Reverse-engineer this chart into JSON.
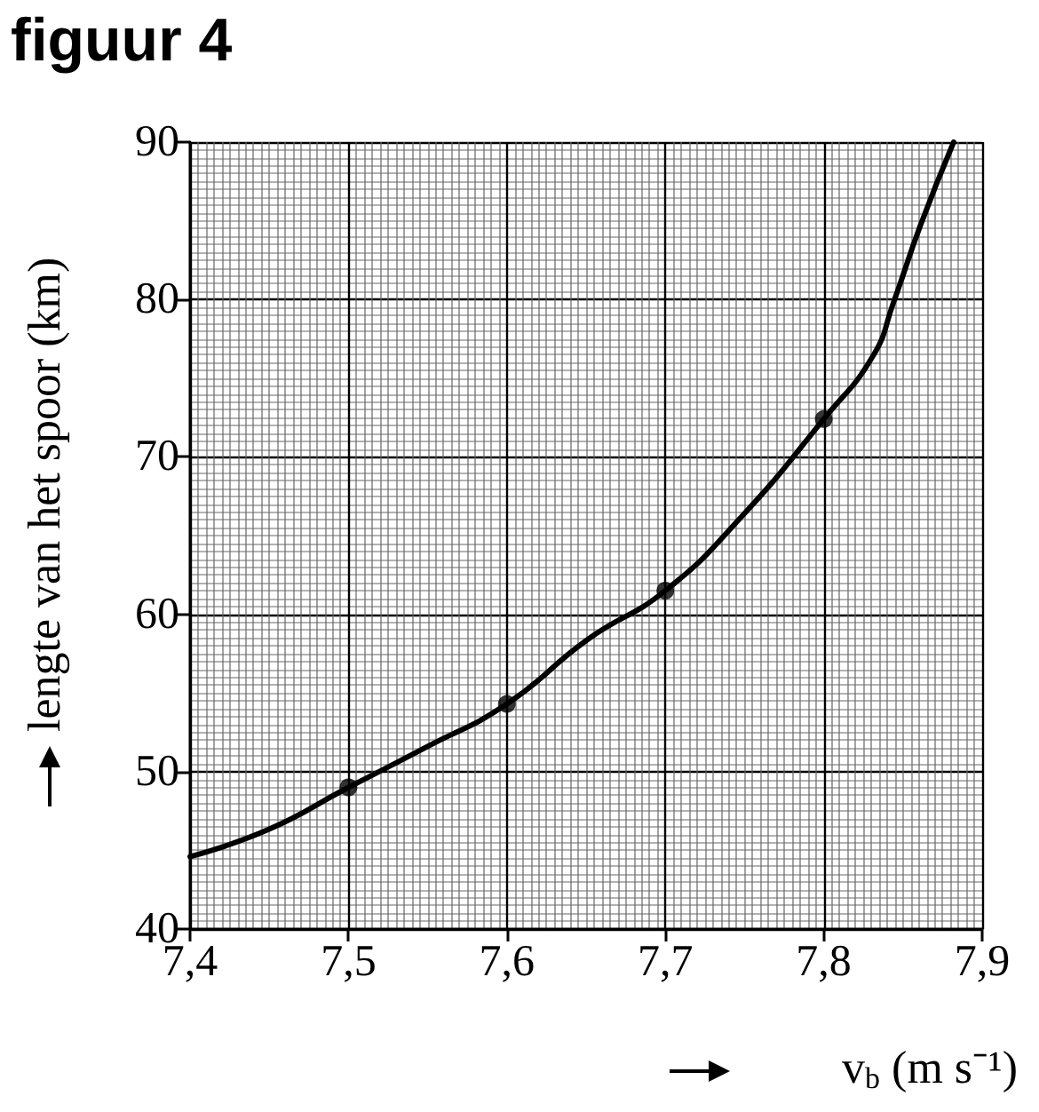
{
  "chart_data": {
    "type": "line",
    "title": "figuur 4",
    "xlabel": "v$_{b}$ (m s⁻¹)",
    "ylabel": "lengte van het spoor (km)",
    "xlim": [
      7.4,
      7.9
    ],
    "ylim": [
      40,
      90
    ],
    "xticks": [
      {
        "value": 7.4,
        "label": "7,4"
      },
      {
        "value": 7.5,
        "label": "7,5"
      },
      {
        "value": 7.6,
        "label": "7,6"
      },
      {
        "value": 7.7,
        "label": "7,7"
      },
      {
        "value": 7.8,
        "label": "7,8"
      },
      {
        "value": 7.9,
        "label": "7,9"
      }
    ],
    "yticks": [
      40,
      50,
      60,
      70,
      80,
      90
    ],
    "grid": true,
    "series": [
      {
        "color": "#000000",
        "marker": "none",
        "line_style": "solid",
        "x": [
          7.4,
          7.449,
          7.5,
          7.55,
          7.6,
          7.651,
          7.7,
          7.749,
          7.8,
          7.831,
          7.844,
          7.861,
          7.882
        ],
        "values": [
          44.6,
          46.3,
          49.0,
          51.6,
          54.3,
          58.4,
          61.5,
          66.3,
          72.4,
          76.4,
          79.8,
          84.7,
          90
        ]
      },
      {
        "type": "scatter",
        "color": "#000000",
        "marker": "circle",
        "x": [
          7.5,
          7.6,
          7.7,
          7.8
        ],
        "values": [
          49.0,
          54.3,
          61.5,
          72.4
        ]
      }
    ]
  }
}
